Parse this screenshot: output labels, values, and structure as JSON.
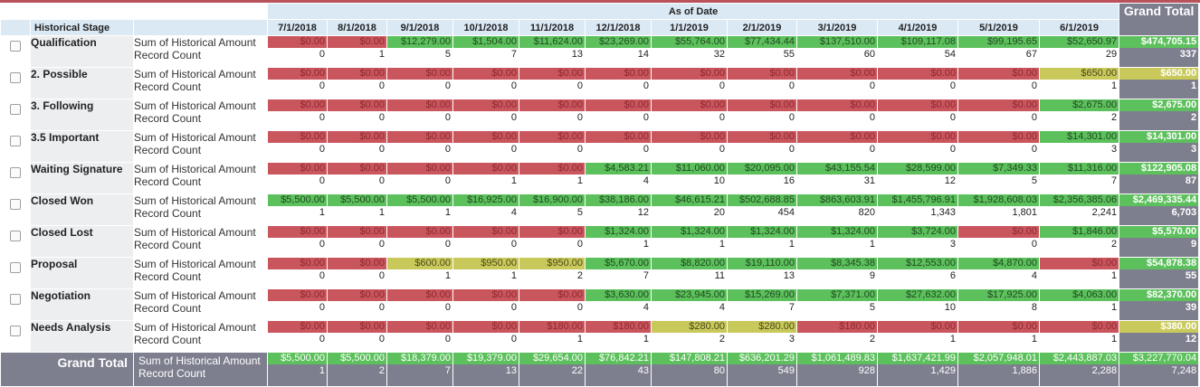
{
  "header": {
    "stage_col": "Historical Stage",
    "as_of": "As of Date",
    "grand_total": "Grand Total",
    "dates": [
      "7/1/2018",
      "8/1/2018",
      "9/1/2018",
      "10/1/2018",
      "11/1/2018",
      "12/1/2018",
      "1/1/2019",
      "2/1/2019",
      "3/1/2019",
      "4/1/2019",
      "5/1/2019",
      "6/1/2019"
    ]
  },
  "labels": {
    "sum": "Sum of Historical Amount",
    "count": "Record Count"
  },
  "colors": {
    "red": "#c9555d",
    "green": "#5cc05c",
    "yellow": "#c9c95b",
    "header": "#dbe9f5",
    "total": "#7d7f8e"
  },
  "rows": [
    {
      "stage": "Qualification",
      "amounts": [
        "$0.00",
        "$0.00",
        "$12,279.00",
        "$1,504.00",
        "$11,624.00",
        "$23,269.00",
        "$55,764.00",
        "$77,434.44",
        "$137,510.00",
        "$109,117.08",
        "$99,195.65",
        "$52,650.97"
      ],
      "colors": [
        "red",
        "red",
        "green",
        "green",
        "green",
        "green",
        "green",
        "green",
        "green",
        "green",
        "green",
        "green"
      ],
      "counts": [
        "0",
        "1",
        "5",
        "7",
        "13",
        "14",
        "32",
        "55",
        "60",
        "54",
        "67",
        "29"
      ],
      "total_amount": "$474,705.15",
      "total_color": "green",
      "total_count": "337"
    },
    {
      "stage": "2. Possible",
      "amounts": [
        "$0.00",
        "$0.00",
        "$0.00",
        "$0.00",
        "$0.00",
        "$0.00",
        "$0.00",
        "$0.00",
        "$0.00",
        "$0.00",
        "$0.00",
        "$650.00"
      ],
      "colors": [
        "red",
        "red",
        "red",
        "red",
        "red",
        "red",
        "red",
        "red",
        "red",
        "red",
        "red",
        "yellow"
      ],
      "counts": [
        "0",
        "0",
        "0",
        "0",
        "0",
        "0",
        "0",
        "0",
        "0",
        "0",
        "0",
        "1"
      ],
      "total_amount": "$650.00",
      "total_color": "yellow",
      "total_count": "1"
    },
    {
      "stage": "3. Following",
      "amounts": [
        "$0.00",
        "$0.00",
        "$0.00",
        "$0.00",
        "$0.00",
        "$0.00",
        "$0.00",
        "$0.00",
        "$0.00",
        "$0.00",
        "$0.00",
        "$2,675.00"
      ],
      "colors": [
        "red",
        "red",
        "red",
        "red",
        "red",
        "red",
        "red",
        "red",
        "red",
        "red",
        "red",
        "green"
      ],
      "counts": [
        "0",
        "0",
        "0",
        "0",
        "0",
        "0",
        "0",
        "0",
        "0",
        "0",
        "0",
        "2"
      ],
      "total_amount": "$2,675.00",
      "total_color": "green",
      "total_count": "2"
    },
    {
      "stage": "3.5 Important",
      "amounts": [
        "$0.00",
        "$0.00",
        "$0.00",
        "$0.00",
        "$0.00",
        "$0.00",
        "$0.00",
        "$0.00",
        "$0.00",
        "$0.00",
        "$0.00",
        "$14,301.00"
      ],
      "colors": [
        "red",
        "red",
        "red",
        "red",
        "red",
        "red",
        "red",
        "red",
        "red",
        "red",
        "red",
        "green"
      ],
      "counts": [
        "0",
        "0",
        "0",
        "0",
        "0",
        "0",
        "0",
        "0",
        "0",
        "0",
        "0",
        "3"
      ],
      "total_amount": "$14,301.00",
      "total_color": "green",
      "total_count": "3"
    },
    {
      "stage": "Waiting Signature",
      "amounts": [
        "$0.00",
        "$0.00",
        "$0.00",
        "$0.00",
        "$0.00",
        "$4,583.21",
        "$11,060.00",
        "$20,095.00",
        "$43,155.54",
        "$28,599.00",
        "$7,349.33",
        "$11,316.00"
      ],
      "colors": [
        "red",
        "red",
        "red",
        "red",
        "red",
        "green",
        "green",
        "green",
        "green",
        "green",
        "green",
        "green"
      ],
      "counts": [
        "0",
        "0",
        "0",
        "1",
        "1",
        "4",
        "10",
        "16",
        "31",
        "12",
        "5",
        "7"
      ],
      "total_amount": "$122,905.08",
      "total_color": "green",
      "total_count": "87"
    },
    {
      "stage": "Closed Won",
      "amounts": [
        "$5,500.00",
        "$5,500.00",
        "$5,500.00",
        "$16,925.00",
        "$16,900.00",
        "$38,186.00",
        "$46,615.21",
        "$502,688.85",
        "$863,603.91",
        "$1,455,796.91",
        "$1,928,608.03",
        "$2,356,385.06"
      ],
      "colors": [
        "green",
        "green",
        "green",
        "green",
        "green",
        "green",
        "green",
        "green",
        "green",
        "green",
        "green",
        "green"
      ],
      "counts": [
        "1",
        "1",
        "1",
        "4",
        "5",
        "12",
        "20",
        "454",
        "820",
        "1,343",
        "1,801",
        "2,241"
      ],
      "total_amount": "$2,469,335.44",
      "total_color": "green",
      "total_count": "6,703"
    },
    {
      "stage": "Closed Lost",
      "amounts": [
        "$0.00",
        "$0.00",
        "$0.00",
        "$0.00",
        "$0.00",
        "$1,324.00",
        "$1,324.00",
        "$1,324.00",
        "$1,324.00",
        "$3,724.00",
        "$0.00",
        "$1,846.00"
      ],
      "colors": [
        "red",
        "red",
        "red",
        "red",
        "red",
        "green",
        "green",
        "green",
        "green",
        "green",
        "red",
        "green"
      ],
      "counts": [
        "0",
        "0",
        "0",
        "0",
        "0",
        "1",
        "1",
        "1",
        "1",
        "3",
        "0",
        "2"
      ],
      "total_amount": "$5,570.00",
      "total_color": "green",
      "total_count": "9"
    },
    {
      "stage": "Proposal",
      "amounts": [
        "$0.00",
        "$0.00",
        "$600.00",
        "$950.00",
        "$950.00",
        "$5,670.00",
        "$8,820.00",
        "$19,110.00",
        "$8,345.38",
        "$12,553.00",
        "$4,870.00",
        "$0.00"
      ],
      "colors": [
        "red",
        "red",
        "yellow",
        "yellow",
        "yellow",
        "green",
        "green",
        "green",
        "green",
        "green",
        "green",
        "red"
      ],
      "counts": [
        "0",
        "0",
        "1",
        "1",
        "2",
        "7",
        "11",
        "13",
        "9",
        "6",
        "4",
        "1"
      ],
      "total_amount": "$54,878.38",
      "total_color": "green",
      "total_count": "55"
    },
    {
      "stage": "Negotiation",
      "amounts": [
        "$0.00",
        "$0.00",
        "$0.00",
        "$0.00",
        "$0.00",
        "$3,630.00",
        "$23,945.00",
        "$15,269.00",
        "$7,371.00",
        "$27,632.00",
        "$17,925.00",
        "$4,063.00"
      ],
      "colors": [
        "red",
        "red",
        "red",
        "red",
        "red",
        "green",
        "green",
        "green",
        "green",
        "green",
        "green",
        "green"
      ],
      "counts": [
        "0",
        "0",
        "0",
        "0",
        "0",
        "4",
        "4",
        "7",
        "5",
        "10",
        "8",
        "1"
      ],
      "total_amount": "$82,370.00",
      "total_color": "green",
      "total_count": "39"
    },
    {
      "stage": "Needs Analysis",
      "amounts": [
        "$0.00",
        "$0.00",
        "$0.00",
        "$0.00",
        "$180.00",
        "$180.00",
        "$280.00",
        "$280.00",
        "$180.00",
        "$0.00",
        "$0.00",
        "$0.00"
      ],
      "colors": [
        "red",
        "red",
        "red",
        "red",
        "red",
        "red",
        "yellow",
        "yellow",
        "red",
        "red",
        "red",
        "red"
      ],
      "counts": [
        "0",
        "0",
        "0",
        "0",
        "1",
        "1",
        "2",
        "3",
        "2",
        "1",
        "1",
        "1"
      ],
      "total_amount": "$380.00",
      "total_color": "yellow",
      "total_count": "12"
    }
  ],
  "grand_total": {
    "label": "Grand Total",
    "amounts": [
      "$5,500.00",
      "$5,500.00",
      "$18,379.00",
      "$19,379.00",
      "$29,654.00",
      "$76,842.21",
      "$147,808.21",
      "$636,201.29",
      "$1,061,489.83",
      "$1,637,421.99",
      "$2,057,948.01",
      "$2,443,887.03"
    ],
    "counts": [
      "1",
      "2",
      "7",
      "13",
      "22",
      "43",
      "80",
      "549",
      "928",
      "1,429",
      "1,886",
      "2,288"
    ],
    "total_amount": "$3,227,770.04",
    "total_count": "7,248"
  }
}
